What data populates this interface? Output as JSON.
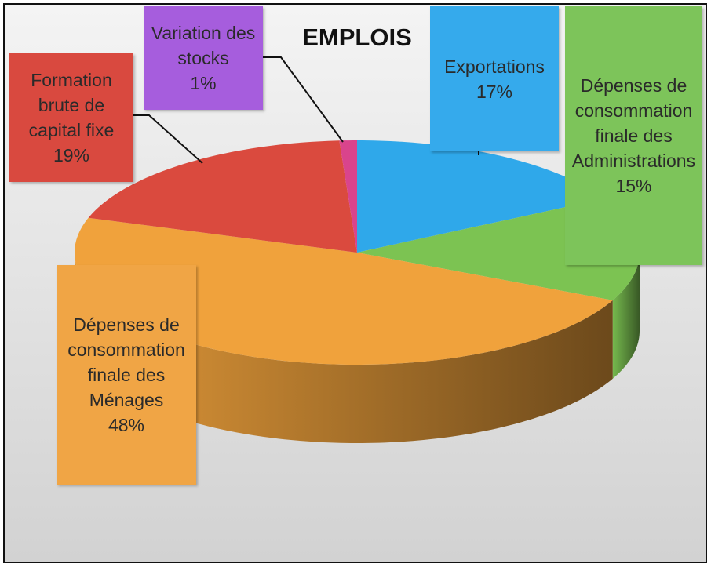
{
  "chart_data": {
    "type": "pie",
    "title": "EMPLOIS",
    "categories": [
      "Exportations",
      "Dépenses de consommation finale des Administrations",
      "Dépenses de consommation finale des Ménages",
      "Formation brute de capital fixe",
      "Variation des stocks"
    ],
    "values": [
      17,
      15,
      48,
      19,
      1
    ],
    "value_labels": [
      "17%",
      "15%",
      "48%",
      "19%",
      "1%"
    ],
    "colors": [
      "#2fa8ea",
      "#7cc352",
      "#f0a23c",
      "#da4a3e",
      "#d9448c"
    ],
    "label_colors": [
      "#35aaec",
      "#7dc45a",
      "#f0a545",
      "#d9493f",
      "#a65ddd"
    ]
  }
}
